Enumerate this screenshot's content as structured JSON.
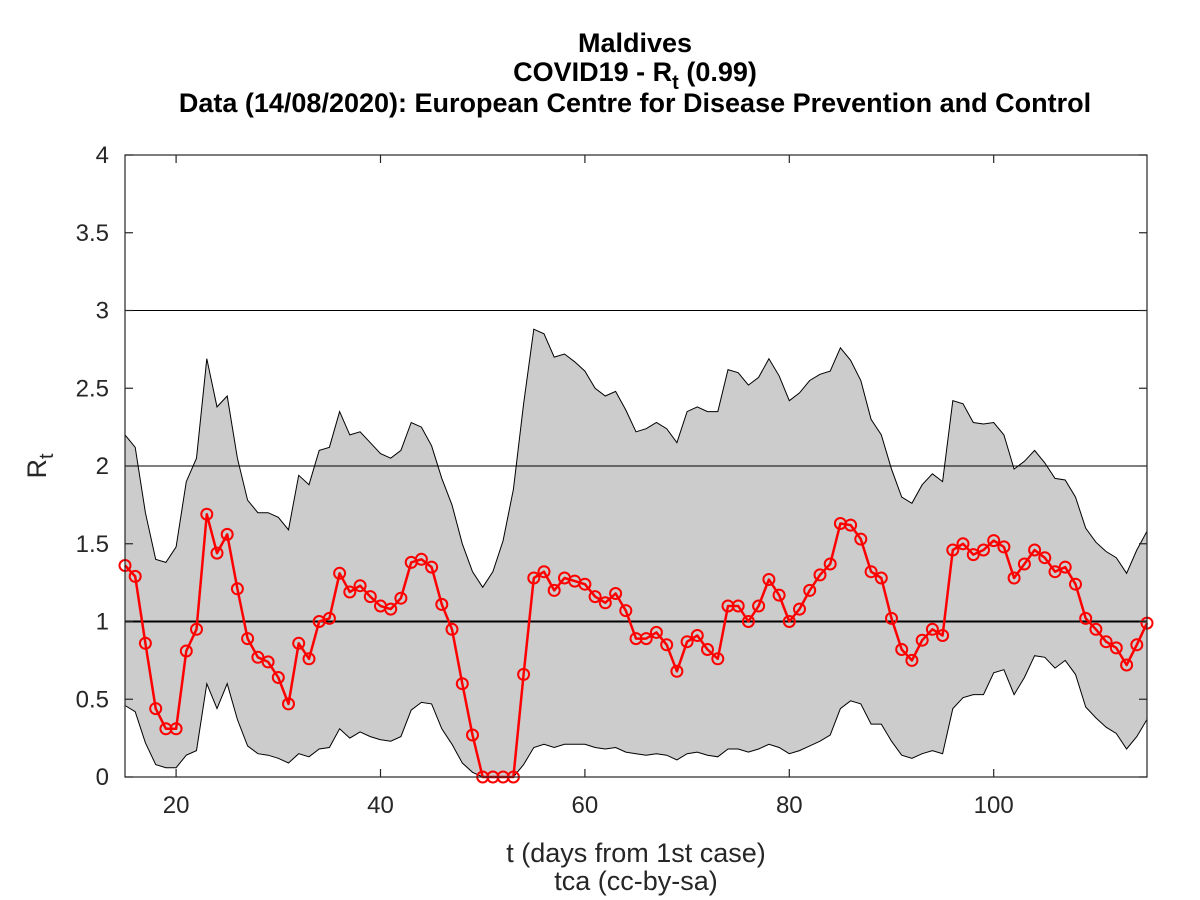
{
  "chart_data": {
    "type": "line",
    "title": {
      "line1": "Maldives",
      "line2_prefix": "COVID19 - R",
      "line2_sub": "t",
      "line2_suffix": " (0.99)",
      "line3": "Data (14/08/2020): European Centre for Disease Prevention and Control"
    },
    "xlabel": "t (days from 1st case)",
    "credit": "tca (cc-by-sa)",
    "ylabel": {
      "main": "R",
      "sub": "t"
    },
    "xlim": [
      15,
      115
    ],
    "ylim": [
      0,
      4
    ],
    "x_ticks": [
      20,
      40,
      60,
      80,
      100
    ],
    "y_ticks": [
      "0",
      "0.5",
      "1",
      "1.5",
      "2",
      "2.5",
      "3",
      "3.5",
      "4"
    ],
    "hlines": [
      {
        "y": 1,
        "style": "thick"
      },
      {
        "y": 2,
        "style": "thin"
      },
      {
        "y": 3,
        "style": "thin"
      }
    ],
    "grid": false,
    "colors": {
      "series": "#ff0000",
      "band": "#cccccc",
      "band_edge": "#000000"
    },
    "series": [
      {
        "x": [
          15,
          16,
          17,
          18,
          19,
          20,
          21,
          22,
          23,
          24,
          25,
          26,
          27,
          28,
          29,
          30,
          31,
          32,
          33,
          34,
          35,
          36,
          37,
          38,
          39,
          40,
          41,
          42,
          43,
          44,
          45,
          46,
          47,
          48,
          49,
          50,
          51,
          52,
          53,
          54,
          55,
          56,
          57,
          58,
          59,
          60,
          61,
          62,
          63,
          64,
          65,
          66,
          67,
          68,
          69,
          70,
          71,
          72,
          73,
          74,
          75,
          76,
          77,
          78,
          79,
          80,
          81,
          82,
          83,
          84,
          85,
          86,
          87,
          88,
          89,
          90,
          91,
          92,
          93,
          94,
          95,
          96,
          97,
          98,
          99,
          100,
          101,
          102,
          103,
          104,
          105,
          106,
          107,
          108,
          109,
          110,
          111,
          112,
          113,
          114,
          115
        ],
        "y": [
          1.36,
          1.29,
          0.86,
          0.44,
          0.31,
          0.31,
          0.81,
          0.95,
          1.69,
          1.44,
          1.56,
          1.21,
          0.89,
          0.77,
          0.74,
          0.64,
          0.47,
          0.86,
          0.76,
          1.0,
          1.02,
          1.31,
          1.19,
          1.23,
          1.16,
          1.1,
          1.08,
          1.15,
          1.38,
          1.4,
          1.35,
          1.11,
          0.95,
          0.6,
          0.27,
          0.0,
          0.0,
          0.0,
          0.0,
          0.66,
          1.28,
          1.32,
          1.2,
          1.28,
          1.26,
          1.24,
          1.16,
          1.12,
          1.18,
          1.07,
          0.89,
          0.89,
          0.93,
          0.85,
          0.68,
          0.87,
          0.91,
          0.82,
          0.76,
          1.1,
          1.1,
          1.0,
          1.1,
          1.27,
          1.17,
          1.0,
          1.08,
          1.2,
          1.3,
          1.37,
          1.63,
          1.62,
          1.53,
          1.32,
          1.28,
          1.02,
          0.82,
          0.75,
          0.88,
          0.95,
          0.91,
          1.46,
          1.5,
          1.43,
          1.46,
          1.52,
          1.48,
          1.28,
          1.37,
          1.46,
          1.41,
          1.32,
          1.35,
          1.24,
          1.02,
          0.95,
          0.87,
          0.83,
          0.72,
          0.85,
          0.99
        ],
        "upper": [
          2.2,
          2.12,
          1.7,
          1.4,
          1.38,
          1.48,
          1.9,
          2.05,
          2.69,
          2.38,
          2.45,
          2.05,
          1.78,
          1.7,
          1.7,
          1.67,
          1.59,
          1.94,
          1.88,
          2.1,
          2.12,
          2.35,
          2.2,
          2.22,
          2.15,
          2.08,
          2.05,
          2.1,
          2.28,
          2.25,
          2.13,
          1.92,
          1.75,
          1.5,
          1.32,
          1.22,
          1.32,
          1.52,
          1.85,
          2.4,
          2.88,
          2.85,
          2.7,
          2.72,
          2.67,
          2.61,
          2.5,
          2.45,
          2.48,
          2.36,
          2.22,
          2.24,
          2.28,
          2.24,
          2.15,
          2.35,
          2.38,
          2.35,
          2.35,
          2.62,
          2.6,
          2.52,
          2.57,
          2.69,
          2.58,
          2.42,
          2.47,
          2.55,
          2.59,
          2.61,
          2.76,
          2.68,
          2.55,
          2.3,
          2.2,
          1.98,
          1.8,
          1.76,
          1.88,
          1.95,
          1.9,
          2.42,
          2.4,
          2.28,
          2.27,
          2.28,
          2.2,
          1.98,
          2.03,
          2.1,
          2.02,
          1.92,
          1.91,
          1.8,
          1.6,
          1.51,
          1.45,
          1.41,
          1.31,
          1.46,
          1.58
        ],
        "lower": [
          0.46,
          0.42,
          0.22,
          0.08,
          0.06,
          0.06,
          0.14,
          0.17,
          0.6,
          0.44,
          0.6,
          0.37,
          0.2,
          0.15,
          0.14,
          0.12,
          0.09,
          0.15,
          0.13,
          0.18,
          0.19,
          0.31,
          0.25,
          0.29,
          0.26,
          0.24,
          0.23,
          0.26,
          0.43,
          0.48,
          0.47,
          0.31,
          0.21,
          0.09,
          0.03,
          0.0,
          0.0,
          0.0,
          0.0,
          0.08,
          0.19,
          0.21,
          0.19,
          0.21,
          0.21,
          0.21,
          0.19,
          0.18,
          0.19,
          0.16,
          0.15,
          0.14,
          0.15,
          0.14,
          0.11,
          0.15,
          0.16,
          0.14,
          0.13,
          0.18,
          0.18,
          0.16,
          0.18,
          0.21,
          0.19,
          0.15,
          0.17,
          0.2,
          0.23,
          0.27,
          0.44,
          0.49,
          0.47,
          0.34,
          0.34,
          0.23,
          0.14,
          0.12,
          0.15,
          0.17,
          0.15,
          0.44,
          0.51,
          0.53,
          0.53,
          0.67,
          0.69,
          0.53,
          0.64,
          0.78,
          0.77,
          0.7,
          0.75,
          0.66,
          0.45,
          0.38,
          0.32,
          0.28,
          0.18,
          0.26,
          0.37
        ]
      }
    ]
  }
}
